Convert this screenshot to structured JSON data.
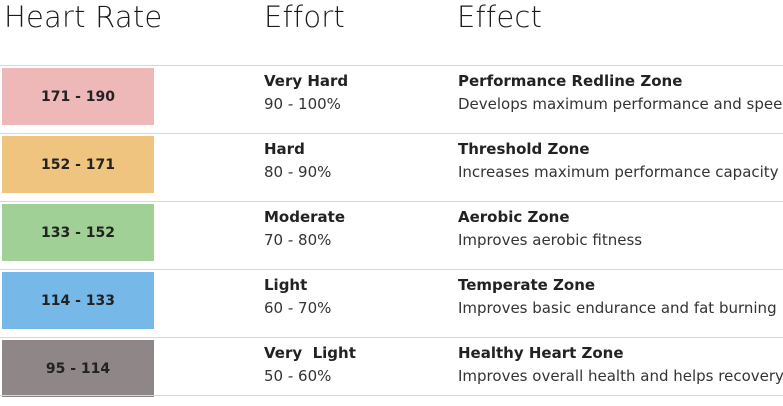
{
  "header": {
    "columns": [
      "Heart Rate",
      "Effort",
      "Effect"
    ]
  },
  "table": {
    "rows": [
      {
        "heart_rate": "171 - 190",
        "effort": "Very Hard",
        "intensity": "90 - 100%",
        "zone": "Performance Redline Zone",
        "description": "Develops maximum performance and speed"
      },
      {
        "heart_rate": "152 - 171",
        "effort": "Hard",
        "intensity": "80 - 90%",
        "zone": "Threshold Zone",
        "description": "Increases maximum performance capacity"
      },
      {
        "heart_rate": "133 - 152",
        "effort": "Moderate",
        "intensity": "70 - 80%",
        "zone": "Aerobic Zone",
        "description": "Improves aerobic fitness"
      },
      {
        "heart_rate": "114 - 133",
        "effort": "Light",
        "intensity": "60 - 70%",
        "zone": "Temperate Zone",
        "description": "Improves basic endurance and fat burning"
      },
      {
        "heart_rate": "95 - 114",
        "effort": "Very  Light",
        "intensity": "50 - 60%",
        "zone": "Healthy Heart Zone",
        "description": "Improves overall health and helps recovery"
      }
    ]
  }
}
